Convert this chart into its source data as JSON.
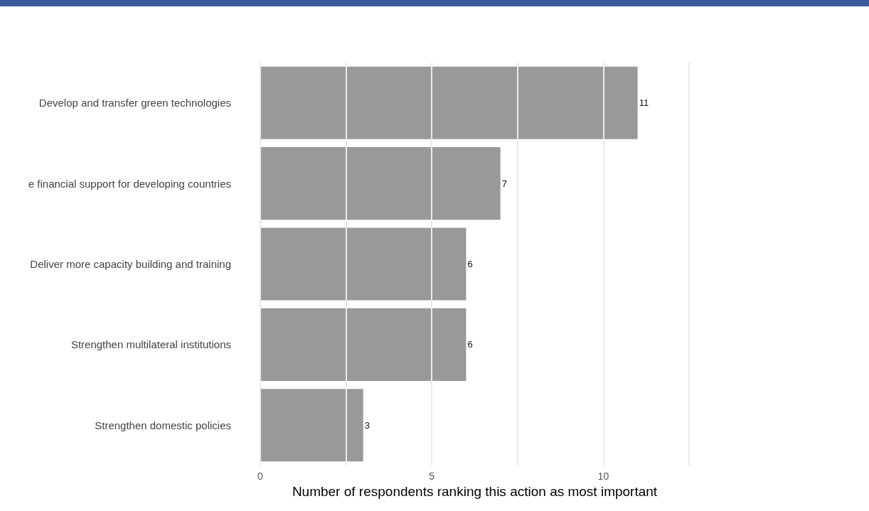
{
  "chart_data": {
    "type": "bar",
    "orientation": "horizontal",
    "categories": [
      "Develop and transfer green technologies",
      "e financial support for developing countries",
      "Deliver more capacity building and training",
      "Strengthen multilateral institutions",
      "Strengthen domestic policies"
    ],
    "values": [
      11,
      7,
      6,
      6,
      3
    ],
    "color": "#999999",
    "xlabel": "Number of respondents ranking this action as most important",
    "xlim": [
      0,
      12.5
    ],
    "xticks": [
      0,
      {
        "value": 2.5,
        "label": null
      },
      5,
      {
        "value": 7.5,
        "label": null
      },
      10,
      {
        "value": 12.5,
        "label": null
      }
    ],
    "grid": "x",
    "data_labels": true
  }
}
